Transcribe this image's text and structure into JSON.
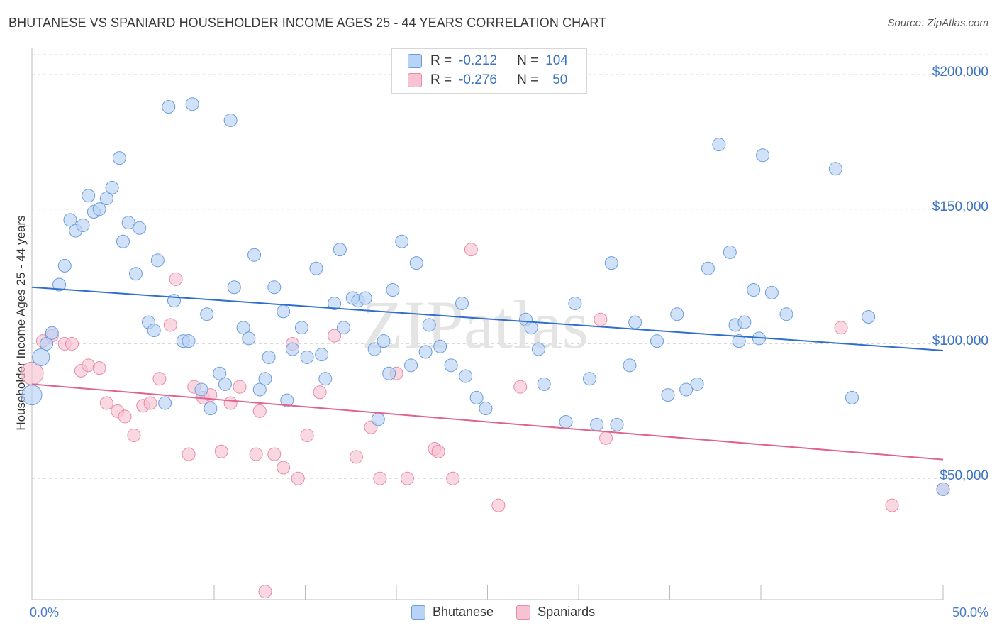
{
  "title": "BHUTANESE VS SPANIARD HOUSEHOLDER INCOME AGES 25 - 44 YEARS CORRELATION CHART",
  "source": "Source: ZipAtlas.com",
  "watermark": "ZIPatlas",
  "legend_top": {
    "rows": [
      {
        "r_label": "R =",
        "r_value": "-0.212",
        "n_label": "N =",
        "n_value": "104"
      },
      {
        "r_label": "R =",
        "r_value": "-0.276",
        "n_label": "N =",
        "n_value": "50"
      }
    ]
  },
  "legend_bottom": [
    "Bhutanese",
    "Spaniards"
  ],
  "colors": {
    "blue_fill": "#b8d3f5",
    "blue_stroke": "#6b9ddb",
    "blue_line": "#2f6fcb",
    "pink_fill": "#f7c3d3",
    "pink_stroke": "#e889a8",
    "pink_line": "#e0628f",
    "tick_text": "#3b73c4",
    "grid": "#d9d9d9"
  },
  "chart_data": {
    "type": "scatter",
    "title": "BHUTANESE VS SPANIARD HOUSEHOLDER INCOME AGES 25 - 44 YEARS CORRELATION CHART",
    "xlabel": "",
    "ylabel": "Householder Income Ages 25 - 44 years",
    "xlim": [
      0,
      50
    ],
    "ylim": [
      5000,
      210000
    ],
    "x_tick_labels": [
      "0.0%",
      "50.0%"
    ],
    "y_ticks": [
      {
        "value": 50000,
        "label": "$50,000"
      },
      {
        "value": 100000,
        "label": "$100,000"
      },
      {
        "value": 150000,
        "label": "$150,000"
      },
      {
        "value": 200000,
        "label": "$200,000"
      }
    ],
    "grid": "horizontal dashed",
    "series": [
      {
        "name": "Bhutanese",
        "trend": {
          "x": [
            0,
            50
          ],
          "y": [
            121000,
            97500
          ]
        },
        "points": [
          [
            0.0,
            81000,
            14
          ],
          [
            0.5,
            95000,
            12
          ],
          [
            0.8,
            100000,
            9
          ],
          [
            1.1,
            104000,
            9
          ],
          [
            1.5,
            122000,
            9
          ],
          [
            1.8,
            129000,
            9
          ],
          [
            2.1,
            146000,
            9
          ],
          [
            2.4,
            142000,
            9
          ],
          [
            2.8,
            144000,
            9
          ],
          [
            3.1,
            155000,
            9
          ],
          [
            3.4,
            149000,
            9
          ],
          [
            3.7,
            150000,
            9
          ],
          [
            4.1,
            154000,
            9
          ],
          [
            4.4,
            158000,
            9
          ],
          [
            4.8,
            169000,
            9
          ],
          [
            5.0,
            138000,
            9
          ],
          [
            5.3,
            145000,
            9
          ],
          [
            5.7,
            126000,
            9
          ],
          [
            5.9,
            143000,
            9
          ],
          [
            6.4,
            108000,
            9
          ],
          [
            6.7,
            105000,
            9
          ],
          [
            6.9,
            131000,
            9
          ],
          [
            7.3,
            78000,
            9
          ],
          [
            7.5,
            188000,
            9
          ],
          [
            7.8,
            116000,
            9
          ],
          [
            8.3,
            101000,
            9
          ],
          [
            8.6,
            101000,
            9
          ],
          [
            8.8,
            189000,
            9
          ],
          [
            9.3,
            83000,
            9
          ],
          [
            9.6,
            111000,
            9
          ],
          [
            9.8,
            76000,
            9
          ],
          [
            10.3,
            89000,
            9
          ],
          [
            10.6,
            85000,
            9
          ],
          [
            10.9,
            183000,
            9
          ],
          [
            11.1,
            121000,
            9
          ],
          [
            11.6,
            106000,
            9
          ],
          [
            11.9,
            102000,
            9
          ],
          [
            12.2,
            133000,
            9
          ],
          [
            12.5,
            83000,
            9
          ],
          [
            12.8,
            87000,
            9
          ],
          [
            13.0,
            95000,
            9
          ],
          [
            13.3,
            121000,
            9
          ],
          [
            13.8,
            112000,
            9
          ],
          [
            14.0,
            79000,
            9
          ],
          [
            14.3,
            98000,
            9
          ],
          [
            14.8,
            106000,
            9
          ],
          [
            15.1,
            95000,
            9
          ],
          [
            15.6,
            128000,
            9
          ],
          [
            15.9,
            96000,
            9
          ],
          [
            16.1,
            87000,
            9
          ],
          [
            16.6,
            115000,
            9
          ],
          [
            16.9,
            135000,
            9
          ],
          [
            17.1,
            106000,
            9
          ],
          [
            17.6,
            117000,
            9
          ],
          [
            17.9,
            116000,
            9
          ],
          [
            18.3,
            117000,
            9
          ],
          [
            18.8,
            98000,
            9
          ],
          [
            19.0,
            72000,
            9
          ],
          [
            19.3,
            101000,
            9
          ],
          [
            19.6,
            89000,
            9
          ],
          [
            19.8,
            120000,
            9
          ],
          [
            20.3,
            138000,
            9
          ],
          [
            20.8,
            92000,
            9
          ],
          [
            21.1,
            130000,
            9
          ],
          [
            21.6,
            97000,
            9
          ],
          [
            21.8,
            107000,
            9
          ],
          [
            22.4,
            99000,
            9
          ],
          [
            23.0,
            92000,
            9
          ],
          [
            23.6,
            115000,
            9
          ],
          [
            23.8,
            88000,
            9
          ],
          [
            24.4,
            80000,
            9
          ],
          [
            24.9,
            76000,
            9
          ],
          [
            27.1,
            109000,
            9
          ],
          [
            27.4,
            106000,
            9
          ],
          [
            27.8,
            98000,
            9
          ],
          [
            28.1,
            85000,
            9
          ],
          [
            29.3,
            71000,
            9
          ],
          [
            29.8,
            115000,
            9
          ],
          [
            30.6,
            87000,
            9
          ],
          [
            31.0,
            70000,
            9
          ],
          [
            31.8,
            130000,
            9
          ],
          [
            32.1,
            70000,
            9
          ],
          [
            32.8,
            92000,
            9
          ],
          [
            33.1,
            108000,
            9
          ],
          [
            34.3,
            101000,
            9
          ],
          [
            34.9,
            81000,
            9
          ],
          [
            35.4,
            111000,
            9
          ],
          [
            35.9,
            83000,
            9
          ],
          [
            36.5,
            85000,
            9
          ],
          [
            37.1,
            128000,
            9
          ],
          [
            37.7,
            174000,
            9
          ],
          [
            38.3,
            134000,
            9
          ],
          [
            38.6,
            107000,
            9
          ],
          [
            38.8,
            101000,
            9
          ],
          [
            39.1,
            108000,
            9
          ],
          [
            39.6,
            120000,
            9
          ],
          [
            39.9,
            102000,
            9
          ],
          [
            40.1,
            170000,
            9
          ],
          [
            40.6,
            119000,
            9
          ],
          [
            41.4,
            111000,
            9
          ],
          [
            44.1,
            165000,
            9
          ],
          [
            45.0,
            80000,
            9
          ],
          [
            45.9,
            110000,
            9
          ],
          [
            50.0,
            46000,
            9
          ]
        ]
      },
      {
        "name": "Spaniards",
        "trend": {
          "x": [
            0,
            50
          ],
          "y": [
            85000,
            57000
          ]
        },
        "points": [
          [
            0.0,
            89000,
            16
          ],
          [
            0.6,
            101000,
            9
          ],
          [
            1.1,
            103000,
            9
          ],
          [
            1.8,
            100000,
            9
          ],
          [
            2.2,
            100000,
            9
          ],
          [
            2.7,
            90000,
            9
          ],
          [
            3.1,
            92000,
            9
          ],
          [
            3.7,
            91000,
            9
          ],
          [
            4.1,
            78000,
            9
          ],
          [
            4.7,
            75000,
            9
          ],
          [
            5.1,
            73000,
            9
          ],
          [
            5.6,
            66000,
            9
          ],
          [
            6.1,
            77000,
            9
          ],
          [
            6.5,
            78000,
            9
          ],
          [
            7.0,
            87000,
            9
          ],
          [
            7.6,
            107000,
            9
          ],
          [
            7.9,
            124000,
            9
          ],
          [
            8.6,
            59000,
            9
          ],
          [
            8.9,
            84000,
            9
          ],
          [
            9.4,
            80000,
            9
          ],
          [
            9.8,
            81000,
            9
          ],
          [
            10.4,
            60000,
            9
          ],
          [
            10.9,
            78000,
            9
          ],
          [
            11.4,
            84000,
            9
          ],
          [
            12.3,
            59000,
            9
          ],
          [
            12.5,
            75000,
            9
          ],
          [
            12.8,
            8000,
            9
          ],
          [
            13.3,
            59000,
            9
          ],
          [
            13.8,
            54000,
            9
          ],
          [
            14.3,
            100000,
            9
          ],
          [
            14.6,
            50000,
            9
          ],
          [
            15.1,
            66000,
            9
          ],
          [
            15.8,
            82000,
            9
          ],
          [
            16.6,
            103000,
            9
          ],
          [
            17.8,
            58000,
            9
          ],
          [
            18.6,
            69000,
            9
          ],
          [
            19.1,
            50000,
            9
          ],
          [
            20.0,
            89000,
            9
          ],
          [
            20.6,
            50000,
            9
          ],
          [
            22.1,
            61000,
            9
          ],
          [
            22.3,
            60000,
            9
          ],
          [
            23.1,
            50000,
            9
          ],
          [
            24.1,
            135000,
            9
          ],
          [
            25.6,
            40000,
            9
          ],
          [
            26.8,
            84000,
            9
          ],
          [
            31.2,
            109000,
            9
          ],
          [
            31.5,
            65000,
            9
          ],
          [
            44.4,
            106000,
            9
          ],
          [
            47.2,
            40000,
            9
          ],
          [
            50.0,
            46000,
            9
          ]
        ]
      }
    ]
  }
}
